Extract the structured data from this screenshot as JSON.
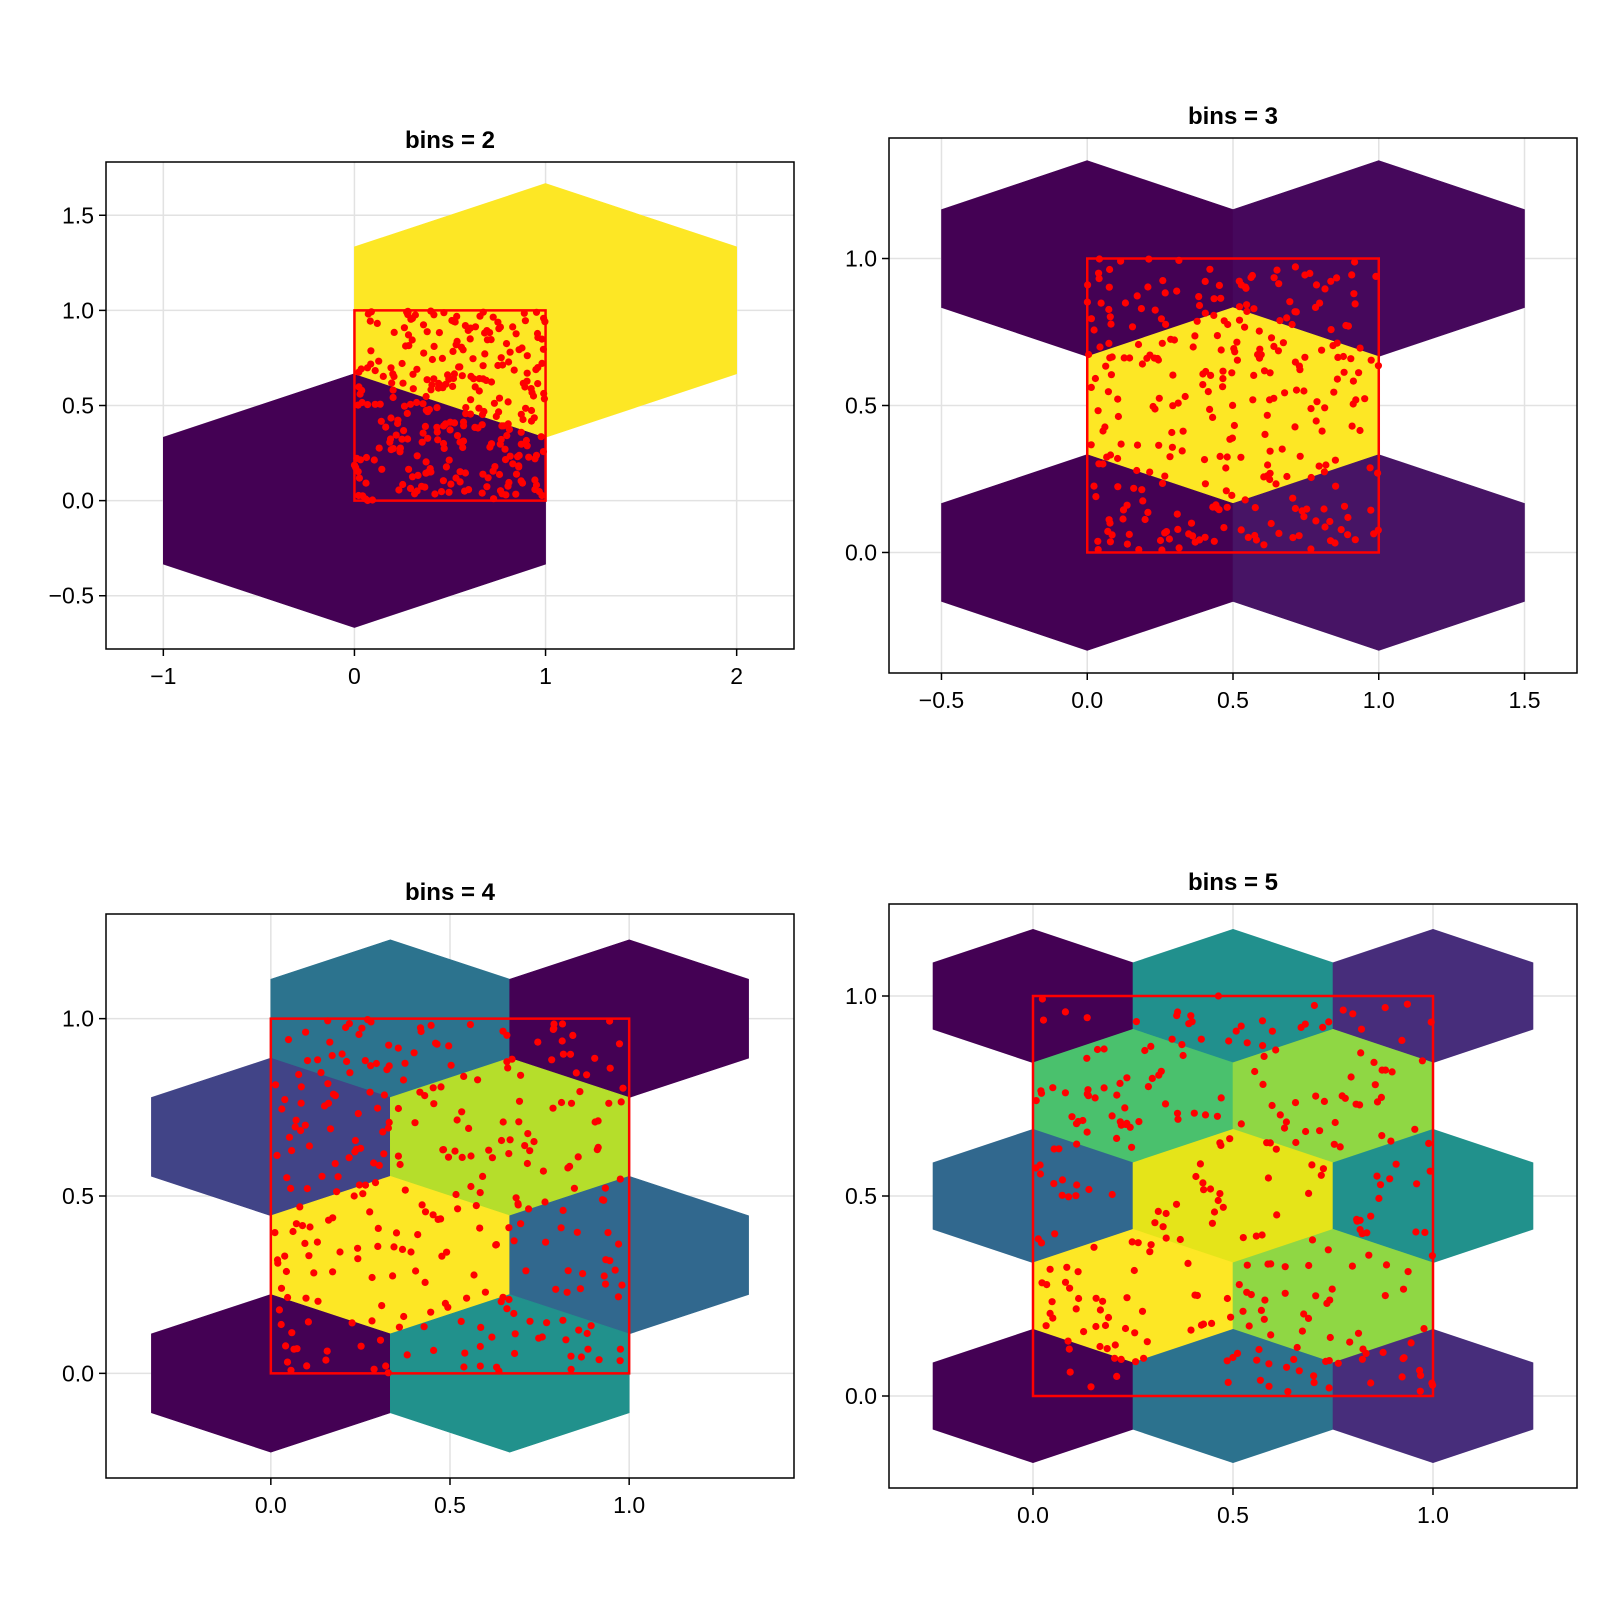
{
  "chart_data": [
    {
      "type": "hexbin",
      "title": "bins = 2",
      "xlim": [
        -1.3,
        2.3
      ],
      "ylim": [
        -0.78,
        1.78
      ],
      "xticks": [
        -1,
        0,
        1,
        2
      ],
      "xtick_labels": [
        "−1",
        "0",
        "1",
        "2"
      ],
      "yticks": [
        -0.5,
        0.0,
        0.5,
        1.0,
        1.5
      ],
      "ytick_labels": [
        "−0.5",
        "0.0",
        "0.5",
        "1.0",
        "1.5"
      ],
      "hex_rx": 1.0,
      "hex_ry": 0.667,
      "hexagons": [
        {
          "x": 0.0,
          "y": 0.0,
          "color": "#440154"
        },
        {
          "x": 1.0,
          "y": 1.0,
          "color": "#fde725"
        }
      ],
      "rect": {
        "x0": 0,
        "y0": 0,
        "x1": 1,
        "y1": 1,
        "color": "#ff0000"
      },
      "points": {
        "count": 300,
        "color": "#ff0000",
        "seed": 11
      }
    },
    {
      "type": "hexbin",
      "title": "bins = 3",
      "xlim": [
        -0.68,
        1.68
      ],
      "ylim": [
        -0.41,
        1.41
      ],
      "xticks": [
        -0.5,
        0.0,
        0.5,
        1.0,
        1.5
      ],
      "xtick_labels": [
        "−0.5",
        "0.0",
        "0.5",
        "1.0",
        "1.5"
      ],
      "yticks": [
        0.0,
        0.5,
        1.0
      ],
      "ytick_labels": [
        "0.0",
        "0.5",
        "1.0"
      ],
      "hex_rx": 0.5,
      "hex_ry": 0.333,
      "hexagons": [
        {
          "x": 0.0,
          "y": 1.0,
          "color": "#440154"
        },
        {
          "x": 1.0,
          "y": 1.0,
          "color": "#46085c"
        },
        {
          "x": 0.5,
          "y": 0.5,
          "color": "#fde725"
        },
        {
          "x": 0.0,
          "y": 0.0,
          "color": "#440154"
        },
        {
          "x": 1.0,
          "y": 0.0,
          "color": "#471465"
        }
      ],
      "rect": {
        "x0": 0,
        "y0": 0,
        "x1": 1,
        "y1": 1,
        "color": "#ff0000"
      },
      "points": {
        "count": 300,
        "color": "#ff0000",
        "seed": 23
      }
    },
    {
      "type": "hexbin",
      "title": "bins = 4",
      "xlim": [
        -0.46,
        1.46
      ],
      "ylim": [
        -0.295,
        1.295
      ],
      "xticks": [
        0.0,
        0.5,
        1.0
      ],
      "xtick_labels": [
        "0.0",
        "0.5",
        "1.0"
      ],
      "yticks": [
        0.0,
        0.5,
        1.0
      ],
      "ytick_labels": [
        "0.0",
        "0.5",
        "1.0"
      ],
      "hex_rx": 0.3333,
      "hex_ry": 0.2222,
      "hexagons": [
        {
          "x": 0.3333,
          "y": 1.0,
          "color": "#2c738e"
        },
        {
          "x": 1.0,
          "y": 1.0,
          "color": "#440154"
        },
        {
          "x": 0.0,
          "y": 0.6667,
          "color": "#414487"
        },
        {
          "x": 0.6667,
          "y": 0.6667,
          "color": "#b5de2b"
        },
        {
          "x": 0.3333,
          "y": 0.3333,
          "color": "#fde725"
        },
        {
          "x": 1.0,
          "y": 0.3333,
          "color": "#31688e"
        },
        {
          "x": 0.0,
          "y": 0.0,
          "color": "#440154"
        },
        {
          "x": 0.6667,
          "y": 0.0,
          "color": "#21918c"
        }
      ],
      "rect": {
        "x0": 0,
        "y0": 0,
        "x1": 1,
        "y1": 1,
        "color": "#ff0000"
      },
      "points": {
        "count": 300,
        "color": "#ff0000",
        "seed": 37
      }
    },
    {
      "type": "hexbin",
      "title": "bins = 5",
      "xlim": [
        -0.36,
        1.36
      ],
      "ylim": [
        -0.23,
        1.23
      ],
      "xticks": [
        0.0,
        0.5,
        1.0
      ],
      "xtick_labels": [
        "0.0",
        "0.5",
        "1.0"
      ],
      "yticks": [
        0.0,
        0.5,
        1.0
      ],
      "ytick_labels": [
        "0.0",
        "0.5",
        "1.0"
      ],
      "hex_rx": 0.25,
      "hex_ry": 0.1667,
      "hexagons": [
        {
          "x": 0.0,
          "y": 1.0,
          "color": "#440154"
        },
        {
          "x": 0.5,
          "y": 1.0,
          "color": "#21908d"
        },
        {
          "x": 1.0,
          "y": 1.0,
          "color": "#472d7b"
        },
        {
          "x": 0.25,
          "y": 0.75,
          "color": "#4ac16d"
        },
        {
          "x": 0.75,
          "y": 0.75,
          "color": "#8fd744"
        },
        {
          "x": 0.0,
          "y": 0.5,
          "color": "#31688e"
        },
        {
          "x": 0.5,
          "y": 0.5,
          "color": "#e5e419"
        },
        {
          "x": 1.0,
          "y": 0.5,
          "color": "#21918c"
        },
        {
          "x": 0.25,
          "y": 0.25,
          "color": "#fde725"
        },
        {
          "x": 0.75,
          "y": 0.25,
          "color": "#8fd744"
        },
        {
          "x": 0.0,
          "y": 0.0,
          "color": "#440154"
        },
        {
          "x": 0.5,
          "y": 0.0,
          "color": "#2c728e"
        },
        {
          "x": 1.0,
          "y": 0.0,
          "color": "#472d7b"
        }
      ],
      "rect": {
        "x0": 0,
        "y0": 0,
        "x1": 1,
        "y1": 1,
        "color": "#ff0000"
      },
      "points": {
        "count": 300,
        "color": "#ff0000",
        "seed": 53
      }
    }
  ]
}
